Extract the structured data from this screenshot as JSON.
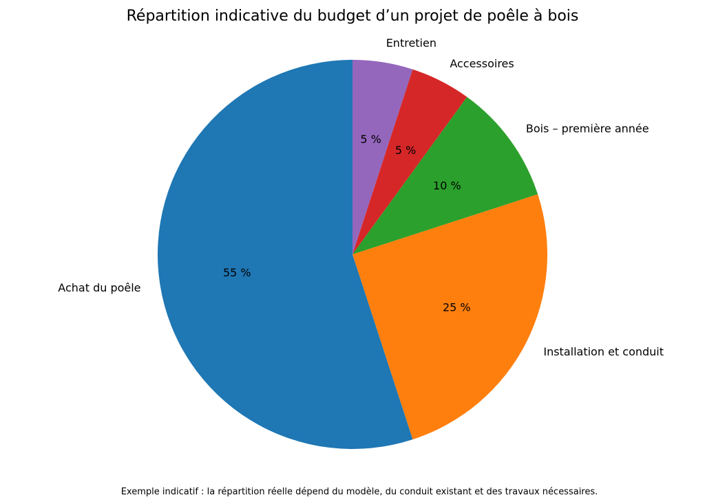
{
  "chart_data": {
    "type": "pie",
    "title": "Répartition indicative du budget d’un projet de poêle à bois",
    "note": "Exemple indicatif : la répartition réelle dépend du modèle, du conduit existant et des travaux nécessaires.",
    "start_angle_deg": 90,
    "direction": "clockwise",
    "slices": [
      {
        "label": "Entretien",
        "value": 5,
        "pct_label": "5 %",
        "color": "#9467bd"
      },
      {
        "label": "Accessoires",
        "value": 5,
        "pct_label": "5 %",
        "color": "#d62728"
      },
      {
        "label": "Bois – première année",
        "value": 10,
        "pct_label": "10 %",
        "color": "#2ca02c"
      },
      {
        "label": "Installation et conduit",
        "value": 25,
        "pct_label": "25 %",
        "color": "#ff7f0e"
      },
      {
        "label": "Achat du poêle",
        "value": 55,
        "pct_label": "55 %",
        "color": "#1f77b4"
      }
    ]
  }
}
